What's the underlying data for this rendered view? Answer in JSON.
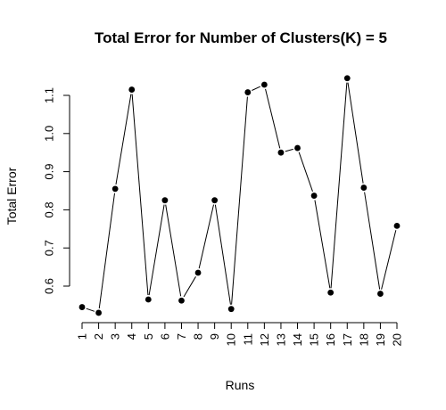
{
  "chart_data": {
    "type": "line",
    "title": "Total Error for Number of Clusters(K) =  5",
    "xlabel": "Runs",
    "ylabel": "Total Error",
    "x": [
      1,
      2,
      3,
      4,
      5,
      6,
      7,
      8,
      9,
      10,
      11,
      12,
      13,
      14,
      15,
      16,
      17,
      18,
      19,
      20
    ],
    "x_tick_labels": [
      "1",
      "2",
      "3",
      "4",
      "5",
      "6",
      "7",
      "8",
      "9",
      "10",
      "11",
      "12",
      "13",
      "14",
      "15",
      "16",
      "17",
      "18",
      "19",
      "20"
    ],
    "y_ticks": [
      0.6,
      0.7,
      0.8,
      0.9,
      1.0,
      1.1
    ],
    "y_tick_labels": [
      "0.6",
      "0.7",
      "0.8",
      "0.9",
      "1.0",
      "1.1"
    ],
    "ylim": [
      0.52,
      1.15
    ],
    "xlim": [
      1,
      20
    ],
    "grid": false,
    "series": [
      {
        "values": [
          0.545,
          0.53,
          0.855,
          1.115,
          0.565,
          0.825,
          0.562,
          0.635,
          0.825,
          0.54,
          1.108,
          1.128,
          0.95,
          0.962,
          0.837,
          0.583,
          1.145,
          0.858,
          0.58,
          0.758
        ]
      }
    ]
  }
}
